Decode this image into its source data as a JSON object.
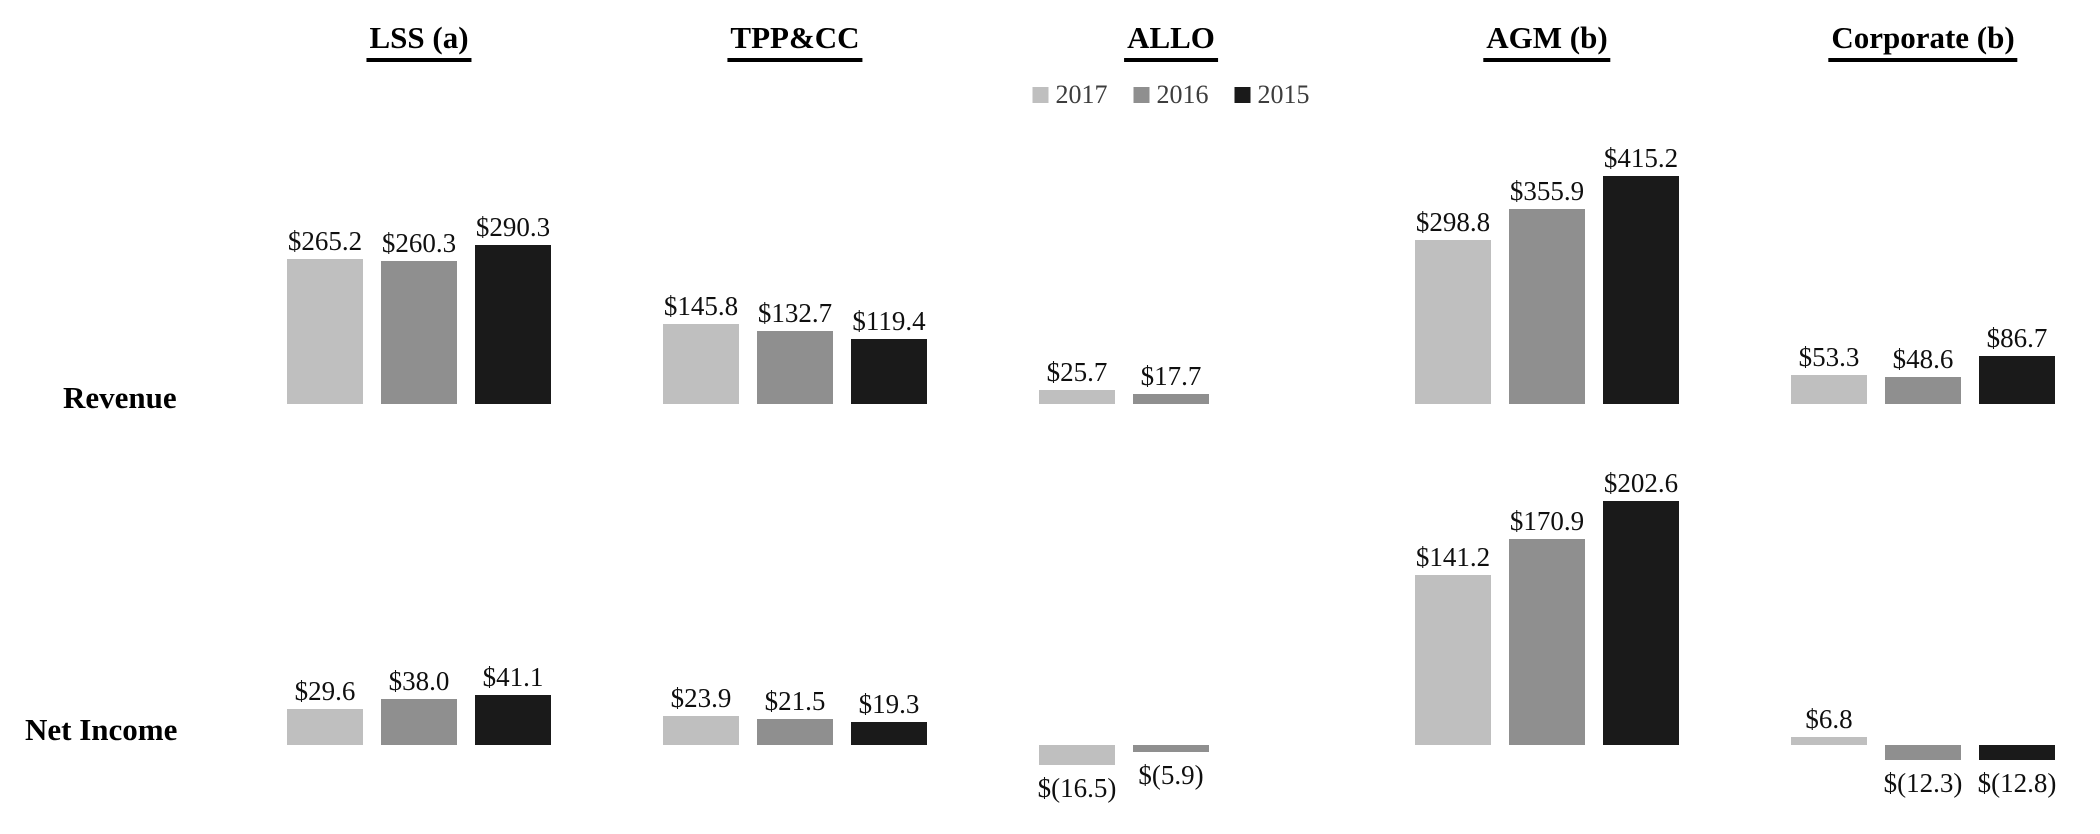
{
  "page": {
    "background": "#ffffff"
  },
  "rows": [
    {
      "label": "Revenue"
    },
    {
      "label": "Net Income"
    }
  ],
  "legend": {
    "items": [
      {
        "label": "2017",
        "color": "#bfbfbf"
      },
      {
        "label": "2016",
        "color": "#8f8f8f"
      },
      {
        "label": "2015",
        "color": "#1a1a1a"
      }
    ]
  },
  "chart_data": {
    "type": "bar",
    "title": "",
    "legend_position": "top-center",
    "years": [
      "2017",
      "2016",
      "2015"
    ],
    "series_colors": [
      "#bfbfbf",
      "#8f8f8f",
      "#1a1a1a"
    ],
    "rows": [
      "Revenue",
      "Net Income"
    ],
    "segments": [
      {
        "name": "LSS (a)",
        "revenue": [
          265.2,
          260.3,
          290.3
        ],
        "revenue_labels": [
          "$265.2",
          "$260.3",
          "$290.3"
        ],
        "net_income": [
          29.6,
          38.0,
          41.1
        ],
        "net_income_labels": [
          "$29.6",
          "$38.0",
          "$41.1"
        ]
      },
      {
        "name": "TPP&CC",
        "revenue": [
          145.8,
          132.7,
          119.4
        ],
        "revenue_labels": [
          "$145.8",
          "$132.7",
          "$119.4"
        ],
        "net_income": [
          23.9,
          21.5,
          19.3
        ],
        "net_income_labels": [
          "$23.9",
          "$21.5",
          "$19.3"
        ]
      },
      {
        "name": "ALLO",
        "revenue": [
          25.7,
          17.7,
          null
        ],
        "revenue_labels": [
          "$25.7",
          "$17.7",
          null
        ],
        "net_income": [
          -16.5,
          -5.9,
          null
        ],
        "net_income_labels": [
          "$(16.5)",
          "$(5.9)",
          null
        ]
      },
      {
        "name": "AGM (b)",
        "revenue": [
          298.8,
          355.9,
          415.2
        ],
        "revenue_labels": [
          "$298.8",
          "$355.9",
          "$415.2"
        ],
        "net_income": [
          141.2,
          170.9,
          202.6
        ],
        "net_income_labels": [
          "$141.2",
          "$170.9",
          "$202.6"
        ]
      },
      {
        "name": "Corporate (b)",
        "revenue": [
          53.3,
          48.6,
          86.7
        ],
        "revenue_labels": [
          "$53.3",
          "$48.6",
          "$86.7"
        ],
        "net_income": [
          6.8,
          -12.3,
          -12.8
        ],
        "net_income_labels": [
          "$6.8",
          "$(12.3)",
          "$(12.8)"
        ]
      }
    ]
  }
}
